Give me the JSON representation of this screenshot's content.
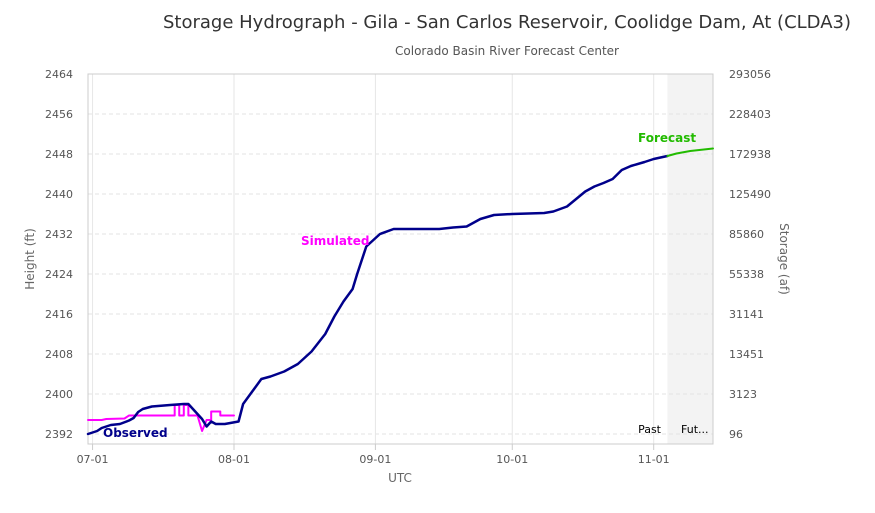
{
  "chart_data": {
    "type": "line",
    "title": "Storage Hydrograph - Gila - San Carlos Reservoir, Coolidge Dam, At (CLDA3)",
    "subtitle": "Colorado Basin River Forecast Center",
    "xlabel": "UTC",
    "ylabel": "Height (ft)",
    "y2label": "Storage (af)",
    "ylim": [
      2390,
      2464
    ],
    "xlim": [
      "06-30",
      "11-14"
    ],
    "x_ticks": [
      "07-01",
      "08-01",
      "09-01",
      "10-01",
      "11-01"
    ],
    "y_ticks": [
      2392,
      2400,
      2408,
      2416,
      2424,
      2432,
      2440,
      2448,
      2456,
      2464
    ],
    "y2_ticks": [
      "96",
      "3123",
      "13451",
      "31141",
      "55338",
      "85860",
      "125490",
      "172938",
      "228403",
      "293056"
    ],
    "future_start": "11-04",
    "past_label": "Past",
    "future_label": "Fut...",
    "grid": true,
    "colors": {
      "observed": "#00008b",
      "simulated": "#ff00ff",
      "forecast": "#22bb00",
      "future_band": "#f3f3f3"
    },
    "series": [
      {
        "name": "Observed",
        "color": "#00008b",
        "points": [
          [
            "06-30",
            2392.0
          ],
          [
            "07-02",
            2392.6
          ],
          [
            "07-03",
            2393.2
          ],
          [
            "07-05",
            2393.8
          ],
          [
            "07-07",
            2394.0
          ],
          [
            "07-09",
            2394.7
          ],
          [
            "07-10",
            2395.2
          ],
          [
            "07-11",
            2396.4
          ],
          [
            "07-12",
            2397.0
          ],
          [
            "07-14",
            2397.5
          ],
          [
            "07-18",
            2397.8
          ],
          [
            "07-21",
            2398.0
          ],
          [
            "07-22",
            2398.0
          ],
          [
            "07-25",
            2395.0
          ],
          [
            "07-26",
            2393.5
          ],
          [
            "07-27",
            2394.5
          ],
          [
            "07-28",
            2394.0
          ],
          [
            "07-30",
            2394.0
          ],
          [
            "08-02",
            2394.5
          ],
          [
            "08-03",
            2398.0
          ],
          [
            "08-05",
            2400.5
          ],
          [
            "08-07",
            2403.0
          ],
          [
            "08-09",
            2403.5
          ],
          [
            "08-12",
            2404.5
          ],
          [
            "08-15",
            2406.0
          ],
          [
            "08-18",
            2408.5
          ],
          [
            "08-21",
            2412.0
          ],
          [
            "08-23",
            2415.5
          ],
          [
            "08-25",
            2418.5
          ],
          [
            "08-27",
            2421.0
          ],
          [
            "08-28",
            2424.0
          ],
          [
            "08-30",
            2429.5
          ],
          [
            "09-02",
            2432.0
          ],
          [
            "09-05",
            2433.0
          ],
          [
            "09-10",
            2433.0
          ],
          [
            "09-15",
            2433.0
          ],
          [
            "09-18",
            2433.3
          ],
          [
            "09-21",
            2433.5
          ],
          [
            "09-24",
            2435.0
          ],
          [
            "09-27",
            2435.8
          ],
          [
            "10-01",
            2436.0
          ],
          [
            "10-08",
            2436.2
          ],
          [
            "10-10",
            2436.5
          ],
          [
            "10-13",
            2437.5
          ],
          [
            "10-15",
            2439.0
          ],
          [
            "10-17",
            2440.5
          ],
          [
            "10-19",
            2441.5
          ],
          [
            "10-21",
            2442.2
          ],
          [
            "10-23",
            2443.0
          ],
          [
            "10-25",
            2444.8
          ],
          [
            "10-27",
            2445.6
          ],
          [
            "10-30",
            2446.4
          ],
          [
            "11-01",
            2447.0
          ],
          [
            "11-04",
            2447.6
          ]
        ]
      },
      {
        "name": "Simulated",
        "color": "#ff00ff",
        "points": [
          [
            "06-30",
            2394.8
          ],
          [
            "07-03",
            2394.8
          ],
          [
            "07-04",
            2395.0
          ],
          [
            "07-08",
            2395.1
          ],
          [
            "07-09",
            2395.7
          ],
          [
            "07-19",
            2395.7
          ],
          [
            "07-19",
            2397.8
          ],
          [
            "07-20",
            2397.8
          ],
          [
            "07-20",
            2395.7
          ],
          [
            "07-21",
            2395.7
          ],
          [
            "07-21",
            2397.8
          ],
          [
            "07-22",
            2397.8
          ],
          [
            "07-22",
            2395.7
          ],
          [
            "07-24",
            2395.7
          ],
          [
            "07-25",
            2392.6
          ],
          [
            "07-26",
            2394.8
          ],
          [
            "07-27",
            2394.8
          ],
          [
            "07-27",
            2396.5
          ],
          [
            "07-29",
            2396.5
          ],
          [
            "07-29",
            2395.7
          ],
          [
            "08-01",
            2395.7
          ]
        ]
      },
      {
        "name": "Forecast",
        "color": "#22bb00",
        "points": [
          [
            "11-04",
            2447.6
          ],
          [
            "11-06",
            2448.1
          ],
          [
            "11-09",
            2448.6
          ],
          [
            "11-12",
            2448.9
          ],
          [
            "11-14",
            2449.1
          ]
        ]
      }
    ],
    "annotations": [
      {
        "text": "Observed",
        "color": "#00008b"
      },
      {
        "text": "Simulated",
        "color": "#ff00ff"
      },
      {
        "text": "Forecast",
        "color": "#22bb00"
      }
    ]
  }
}
